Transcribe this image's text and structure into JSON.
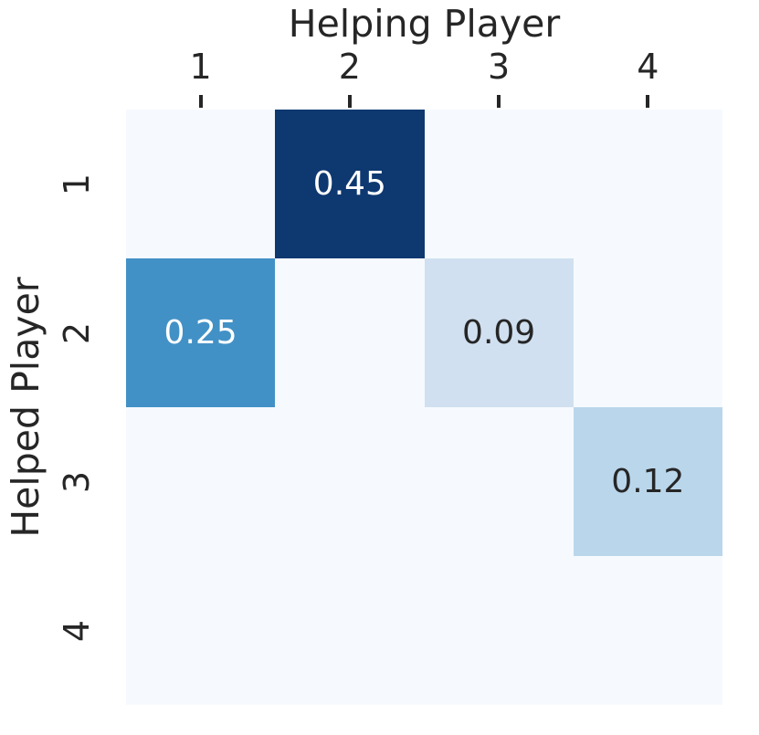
{
  "chart_data": {
    "type": "heatmap",
    "title": "Helping Player",
    "xlabel": "Helping Player",
    "ylabel": "Helped Player",
    "x_tick_labels": [
      "1",
      "2",
      "3",
      "4"
    ],
    "y_tick_labels": [
      "1",
      "2",
      "3",
      "4"
    ],
    "x_axis_side": "top",
    "grid": false,
    "legend": "none",
    "colormap": "Blues",
    "matrix": [
      [
        0,
        0.45,
        0,
        0
      ],
      [
        0.25,
        0,
        0.09,
        0
      ],
      [
        0,
        0,
        0,
        0.12
      ],
      [
        0,
        0,
        0,
        0
      ]
    ],
    "annotated_cells": [
      {
        "row": 0,
        "col": 1,
        "label": "0.45",
        "text_color": "#ffffff",
        "cell_color": "#0e3870"
      },
      {
        "row": 1,
        "col": 0,
        "label": "0.25",
        "text_color": "#ffffff",
        "cell_color": "#4291c6"
      },
      {
        "row": 1,
        "col": 2,
        "label": "0.09",
        "text_color": "#262626",
        "cell_color": "#d0e0f0"
      },
      {
        "row": 2,
        "col": 3,
        "label": "0.12",
        "text_color": "#262626",
        "cell_color": "#bad6eb"
      }
    ],
    "empty_cell_color": "#f6fafe",
    "axis_text_color": "#262626",
    "tick_mark_color": "#262626"
  }
}
